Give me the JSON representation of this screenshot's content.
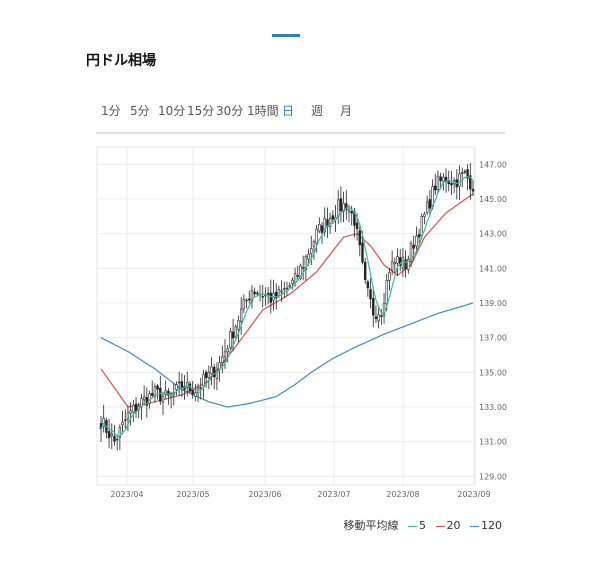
{
  "page": {
    "title": "円ドル相場"
  },
  "tabs": [
    {
      "label": "1分",
      "active": false
    },
    {
      "label": "5分",
      "active": false
    },
    {
      "label": "10分",
      "active": false
    },
    {
      "label": "15分",
      "active": false
    },
    {
      "label": "30分",
      "active": false
    },
    {
      "label": "1時間",
      "active": false
    },
    {
      "label": "日",
      "active": true
    },
    {
      "label": "週",
      "active": false
    },
    {
      "label": "月",
      "active": false
    }
  ],
  "legend": {
    "label": "移動平均線",
    "items": [
      {
        "label": "5",
        "color": "#3cb89a"
      },
      {
        "label": "20",
        "color": "#e0504a"
      },
      {
        "label": "120",
        "color": "#3a8fbf"
      }
    ]
  },
  "chart_data": {
    "type": "candlestick",
    "y_ticks": [
      "147.00",
      "145.00",
      "143.00",
      "141.00",
      "139.00",
      "137.00",
      "135.00",
      "133.00",
      "131.00",
      "129.00"
    ],
    "x_ticks": [
      "2023/04",
      "2023/05",
      "2023/06",
      "2023/07",
      "2023/08",
      "2023/09"
    ],
    "ylim": [
      128.5,
      148
    ],
    "grid": true,
    "colors": {
      "candle_up": "#ffffff",
      "candle_down": "#222222",
      "ma5": "#3cb89a",
      "ma20": "#e0504a",
      "ma120": "#3a8fbf"
    },
    "close_anchors": [
      [
        0,
        132.2
      ],
      [
        5,
        131.0
      ],
      [
        10,
        132.5
      ],
      [
        15,
        133.3
      ],
      [
        20,
        133.8
      ],
      [
        25,
        133.5
      ],
      [
        30,
        134.2
      ],
      [
        35,
        134.0
      ],
      [
        40,
        134.8
      ],
      [
        44,
        135.5
      ],
      [
        48,
        137.0
      ],
      [
        52,
        138.5
      ],
      [
        56,
        139.8
      ],
      [
        60,
        139.5
      ],
      [
        64,
        139.2
      ],
      [
        68,
        139.7
      ],
      [
        72,
        140.3
      ],
      [
        76,
        141.6
      ],
      [
        80,
        143.0
      ],
      [
        84,
        143.8
      ],
      [
        88,
        144.5
      ],
      [
        91,
        144.7
      ],
      [
        94,
        143.8
      ],
      [
        96,
        142.0
      ],
      [
        98,
        140.0
      ],
      [
        101,
        138.5
      ],
      [
        104,
        138.6
      ],
      [
        107,
        141.0
      ],
      [
        110,
        141.5
      ],
      [
        113,
        141.2
      ],
      [
        116,
        142.5
      ],
      [
        120,
        144.0
      ],
      [
        124,
        145.8
      ],
      [
        128,
        146.2
      ],
      [
        131,
        146.0
      ],
      [
        135,
        146.4
      ],
      [
        138,
        145.8
      ]
    ],
    "ma20_anchors": [
      [
        0,
        135.2
      ],
      [
        10,
        133.0
      ],
      [
        20,
        133.3
      ],
      [
        30,
        133.7
      ],
      [
        40,
        134.5
      ],
      [
        50,
        136.5
      ],
      [
        60,
        138.6
      ],
      [
        70,
        139.5
      ],
      [
        80,
        140.8
      ],
      [
        90,
        142.8
      ],
      [
        95,
        143.0
      ],
      [
        100,
        142.3
      ],
      [
        105,
        141.2
      ],
      [
        110,
        140.6
      ],
      [
        115,
        141.2
      ],
      [
        120,
        142.8
      ],
      [
        128,
        144.2
      ],
      [
        138,
        145.3
      ]
    ],
    "ma120_anchors": [
      [
        0,
        137.0
      ],
      [
        10,
        136.2
      ],
      [
        20,
        135.2
      ],
      [
        30,
        134.0
      ],
      [
        40,
        133.3
      ],
      [
        47,
        133.0
      ],
      [
        55,
        133.2
      ],
      [
        65,
        133.6
      ],
      [
        72,
        134.3
      ],
      [
        78,
        135.0
      ],
      [
        86,
        135.8
      ],
      [
        95,
        136.5
      ],
      [
        105,
        137.2
      ],
      [
        115,
        137.8
      ],
      [
        125,
        138.4
      ],
      [
        138,
        139.0
      ]
    ]
  }
}
